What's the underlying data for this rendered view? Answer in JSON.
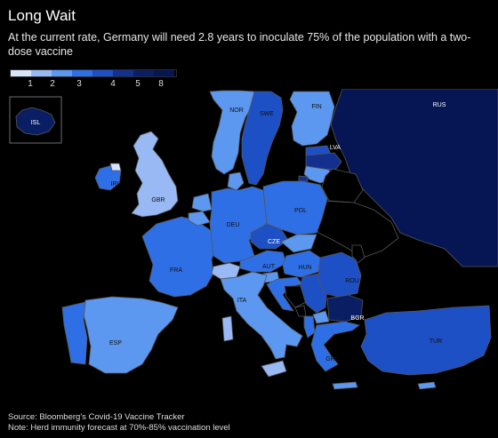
{
  "header": {
    "title": "Long Wait",
    "subtitle": "At the current rate, Germany will need 2.8 years to inoculate 75% of the population with a two-dose vaccine"
  },
  "legend": {
    "ticks": [
      "1",
      "2",
      "3",
      "4",
      "5",
      "8"
    ],
    "colors": [
      "#dbe4fb",
      "#98b9f4",
      "#5c97f0",
      "#2f6fe6",
      "#1d4fc5",
      "#14308e",
      "#0a1f63",
      "#061654"
    ]
  },
  "colors": {
    "background": "#000000",
    "no_data_land": "#000000",
    "borders": "#555555"
  },
  "countries": {
    "ISL": {
      "label": "ISL",
      "level": 6
    },
    "NOR": {
      "label": "NOR",
      "level": 2
    },
    "SWE": {
      "label": "SWE",
      "level": 4
    },
    "FIN": {
      "label": "FIN",
      "level": 2
    },
    "RUS": {
      "label": "RUS",
      "level": 7
    },
    "LVA": {
      "label": "LVA",
      "level": 5
    },
    "IRL": {
      "label": "IRL",
      "level": 3
    },
    "GBR": {
      "label": "GBR",
      "level": 1
    },
    "DEU": {
      "label": "DEU",
      "level": 3
    },
    "POL": {
      "label": "POL",
      "level": 3
    },
    "CZE": {
      "label": "CZE",
      "level": 4
    },
    "FRA": {
      "label": "FRA",
      "level": 3
    },
    "AUT": {
      "label": "AUT",
      "level": 3
    },
    "HUN": {
      "label": "HUN",
      "level": 3
    },
    "ROU": {
      "label": "ROU",
      "level": 4
    },
    "ITA": {
      "label": "ITA",
      "level": 2
    },
    "BGR": {
      "label": "BGR",
      "level": 6
    },
    "ESP": {
      "label": "ESP",
      "level": 2
    },
    "GRC": {
      "label": "GRC",
      "level": 3
    },
    "TUR": {
      "label": "TUR",
      "level": 4
    }
  },
  "footer": {
    "source": "Source: Bloomberg's Covid-19 Vaccine Tracker",
    "note": "Note: Herd immunity forecast at 70%-85% vaccination level"
  }
}
